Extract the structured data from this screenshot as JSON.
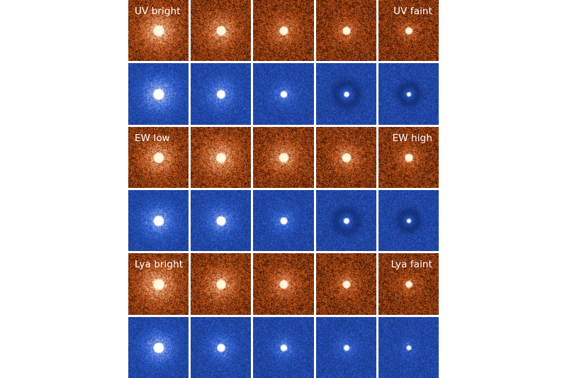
{
  "colors": {
    "orange_base": "#c8561a",
    "orange_dark": "#2a0e03",
    "orange_core": "#fff6dc",
    "blue_base": "#2e5ed0",
    "blue_dark": "#081b52",
    "blue_core": "#ffffff"
  },
  "rows": [
    {
      "colormap": "orange",
      "left_label": "UV bright",
      "right_label": "UV faint",
      "panels": [
        {
          "core": 1.0,
          "halo": 1.0
        },
        {
          "core": 0.85,
          "halo": 0.85
        },
        {
          "core": 0.75,
          "halo": 0.7
        },
        {
          "core": 0.7,
          "halo": 0.55
        },
        {
          "core": 0.6,
          "halo": 0.45
        }
      ]
    },
    {
      "colormap": "blue",
      "left_label": "",
      "right_label": "",
      "panels": [
        {
          "core": 1.0,
          "halo": 0.9
        },
        {
          "core": 0.75,
          "halo": 0.7
        },
        {
          "core": 0.55,
          "halo": 0.5
        },
        {
          "core": 0.4,
          "halo": 0.35,
          "dark_ring": true
        },
        {
          "core": 0.3,
          "halo": 0.25,
          "dark_ring": true
        }
      ]
    },
    {
      "colormap": "orange",
      "left_label": "EW low",
      "right_label": "EW high",
      "panels": [
        {
          "core": 0.95,
          "halo": 0.9
        },
        {
          "core": 0.9,
          "halo": 0.95
        },
        {
          "core": 0.85,
          "halo": 0.8
        },
        {
          "core": 0.8,
          "halo": 0.7
        },
        {
          "core": 0.7,
          "halo": 0.55
        }
      ]
    },
    {
      "colormap": "blue",
      "left_label": "",
      "right_label": "",
      "panels": [
        {
          "core": 0.95,
          "halo": 0.8
        },
        {
          "core": 0.85,
          "halo": 0.7
        },
        {
          "core": 0.6,
          "halo": 0.5
        },
        {
          "core": 0.45,
          "halo": 0.35,
          "dark_ring": true
        },
        {
          "core": 0.3,
          "halo": 0.25,
          "dark_ring": true
        }
      ]
    },
    {
      "colormap": "orange",
      "left_label": "Lya bright",
      "right_label": "Lya faint",
      "panels": [
        {
          "core": 1.0,
          "halo": 1.0
        },
        {
          "core": 0.85,
          "halo": 0.85
        },
        {
          "core": 0.75,
          "halo": 0.7
        },
        {
          "core": 0.65,
          "halo": 0.55
        },
        {
          "core": 0.55,
          "halo": 0.45
        }
      ]
    },
    {
      "colormap": "blue",
      "left_label": "",
      "right_label": "",
      "panels": [
        {
          "core": 0.95,
          "halo": 0.8
        },
        {
          "core": 0.7,
          "halo": 0.6
        },
        {
          "core": 0.55,
          "halo": 0.5
        },
        {
          "core": 0.45,
          "halo": 0.4
        },
        {
          "core": 0.35,
          "halo": 0.3
        }
      ]
    }
  ]
}
